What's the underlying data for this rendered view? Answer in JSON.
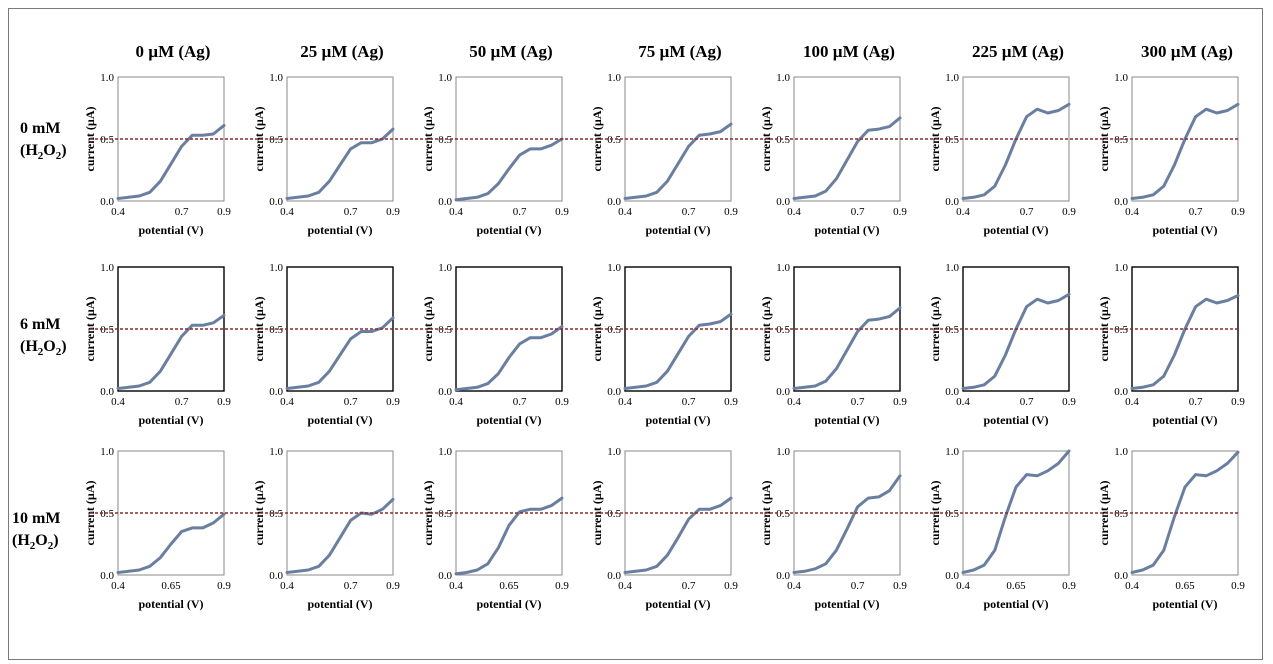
{
  "columns": [
    "0 µM (Ag)",
    "25 µM (Ag)",
    "50 µM (Ag)",
    "75 µM (Ag)",
    "100 µM (Ag)",
    "225 µM (Ag)",
    "300 µM (Ag)"
  ],
  "rows": [
    {
      "conc": "0 mM",
      "species": "H",
      "sub1": "2",
      "mid": "O",
      "sub2": "2"
    },
    {
      "conc": "6 mM",
      "species": "H",
      "sub1": "2",
      "mid": "O",
      "sub2": "2"
    },
    {
      "conc": "10 mM",
      "species": "H",
      "sub1": "2",
      "mid": "O",
      "sub2": "2"
    }
  ],
  "colors": {
    "curve": "#6a7fa0",
    "reference_line": "#8b2a2a",
    "axis": "#8a8a8a"
  },
  "chart_data": {
    "type": "line",
    "xlabel": "potential (V)",
    "ylabel": "current (µA)",
    "ylim": [
      0,
      1.0
    ],
    "yticks": [
      "0.0",
      "0.5",
      "1.0"
    ],
    "reference_y": 0.5,
    "panels": [
      {
        "row": 0,
        "col": 0,
        "xlim": [
          0.4,
          0.9
        ],
        "xticks": [
          "0.4",
          "0.7",
          "0.9"
        ],
        "x": [
          0.4,
          0.45,
          0.5,
          0.55,
          0.6,
          0.65,
          0.7,
          0.75,
          0.8,
          0.85,
          0.9
        ],
        "y": [
          0.02,
          0.03,
          0.04,
          0.07,
          0.16,
          0.3,
          0.44,
          0.53,
          0.53,
          0.54,
          0.61
        ]
      },
      {
        "row": 0,
        "col": 1,
        "xlim": [
          0.4,
          0.9
        ],
        "xticks": [
          "0.4",
          "0.7",
          "0.9"
        ],
        "x": [
          0.4,
          0.45,
          0.5,
          0.55,
          0.6,
          0.65,
          0.7,
          0.75,
          0.8,
          0.85,
          0.9
        ],
        "y": [
          0.02,
          0.03,
          0.04,
          0.07,
          0.16,
          0.29,
          0.42,
          0.47,
          0.47,
          0.5,
          0.58
        ]
      },
      {
        "row": 0,
        "col": 2,
        "xlim": [
          0.4,
          0.9
        ],
        "xticks": [
          "0.4",
          "0.7",
          "0.9"
        ],
        "x": [
          0.4,
          0.45,
          0.5,
          0.55,
          0.6,
          0.65,
          0.7,
          0.75,
          0.8,
          0.85,
          0.9
        ],
        "y": [
          0.01,
          0.02,
          0.03,
          0.06,
          0.14,
          0.26,
          0.37,
          0.42,
          0.42,
          0.45,
          0.5
        ]
      },
      {
        "row": 0,
        "col": 3,
        "xlim": [
          0.4,
          0.9
        ],
        "xticks": [
          "0.4",
          "0.7",
          "0.9"
        ],
        "x": [
          0.4,
          0.45,
          0.5,
          0.55,
          0.6,
          0.65,
          0.7,
          0.75,
          0.8,
          0.85,
          0.9
        ],
        "y": [
          0.02,
          0.03,
          0.04,
          0.07,
          0.16,
          0.3,
          0.44,
          0.53,
          0.54,
          0.56,
          0.62
        ]
      },
      {
        "row": 0,
        "col": 4,
        "xlim": [
          0.4,
          0.9
        ],
        "xticks": [
          "0.4",
          "0.7",
          "0.9"
        ],
        "x": [
          0.4,
          0.45,
          0.5,
          0.55,
          0.6,
          0.65,
          0.7,
          0.75,
          0.8,
          0.85,
          0.9
        ],
        "y": [
          0.02,
          0.03,
          0.04,
          0.08,
          0.18,
          0.33,
          0.48,
          0.57,
          0.58,
          0.6,
          0.67
        ]
      },
      {
        "row": 0,
        "col": 5,
        "xlim": [
          0.4,
          0.9
        ],
        "xticks": [
          "0.4",
          "0.7",
          "0.9"
        ],
        "x": [
          0.4,
          0.45,
          0.5,
          0.55,
          0.6,
          0.65,
          0.7,
          0.75,
          0.8,
          0.85,
          0.9
        ],
        "y": [
          0.02,
          0.03,
          0.05,
          0.12,
          0.29,
          0.5,
          0.68,
          0.74,
          0.71,
          0.73,
          0.78
        ]
      },
      {
        "row": 0,
        "col": 6,
        "xlim": [
          0.4,
          0.9
        ],
        "xticks": [
          "0.4",
          "0.7",
          "0.9"
        ],
        "x": [
          0.4,
          0.45,
          0.5,
          0.55,
          0.6,
          0.65,
          0.7,
          0.75,
          0.8,
          0.85,
          0.9
        ],
        "y": [
          0.02,
          0.03,
          0.05,
          0.12,
          0.29,
          0.5,
          0.68,
          0.74,
          0.71,
          0.73,
          0.78
        ]
      },
      {
        "row": 1,
        "col": 0,
        "xlim": [
          0.4,
          0.9
        ],
        "xticks": [
          "0.4",
          "0.7",
          "0.9"
        ],
        "x": [
          0.4,
          0.45,
          0.5,
          0.55,
          0.6,
          0.65,
          0.7,
          0.75,
          0.8,
          0.85,
          0.9
        ],
        "y": [
          0.02,
          0.03,
          0.04,
          0.07,
          0.16,
          0.3,
          0.44,
          0.53,
          0.53,
          0.55,
          0.61
        ]
      },
      {
        "row": 1,
        "col": 1,
        "xlim": [
          0.4,
          0.9
        ],
        "xticks": [
          "0.4",
          "0.7",
          "0.9"
        ],
        "x": [
          0.4,
          0.45,
          0.5,
          0.55,
          0.6,
          0.65,
          0.7,
          0.75,
          0.8,
          0.85,
          0.9
        ],
        "y": [
          0.02,
          0.03,
          0.04,
          0.07,
          0.16,
          0.29,
          0.42,
          0.48,
          0.48,
          0.51,
          0.59
        ]
      },
      {
        "row": 1,
        "col": 2,
        "xlim": [
          0.4,
          0.9
        ],
        "xticks": [
          "0.4",
          "0.7",
          "0.9"
        ],
        "x": [
          0.4,
          0.45,
          0.5,
          0.55,
          0.6,
          0.65,
          0.7,
          0.75,
          0.8,
          0.85,
          0.9
        ],
        "y": [
          0.01,
          0.02,
          0.03,
          0.06,
          0.14,
          0.27,
          0.38,
          0.43,
          0.43,
          0.46,
          0.52
        ]
      },
      {
        "row": 1,
        "col": 3,
        "xlim": [
          0.4,
          0.9
        ],
        "xticks": [
          "0.4",
          "0.7",
          "0.9"
        ],
        "x": [
          0.4,
          0.45,
          0.5,
          0.55,
          0.6,
          0.65,
          0.7,
          0.75,
          0.8,
          0.85,
          0.9
        ],
        "y": [
          0.02,
          0.03,
          0.04,
          0.07,
          0.16,
          0.3,
          0.44,
          0.53,
          0.54,
          0.56,
          0.62
        ]
      },
      {
        "row": 1,
        "col": 4,
        "xlim": [
          0.4,
          0.9
        ],
        "xticks": [
          "0.4",
          "0.7",
          "0.9"
        ],
        "x": [
          0.4,
          0.45,
          0.5,
          0.55,
          0.6,
          0.65,
          0.7,
          0.75,
          0.8,
          0.85,
          0.9
        ],
        "y": [
          0.02,
          0.03,
          0.04,
          0.08,
          0.18,
          0.33,
          0.48,
          0.57,
          0.58,
          0.6,
          0.67
        ]
      },
      {
        "row": 1,
        "col": 5,
        "xlim": [
          0.4,
          0.9
        ],
        "xticks": [
          "0.4",
          "0.7",
          "0.9"
        ],
        "x": [
          0.4,
          0.45,
          0.5,
          0.55,
          0.6,
          0.65,
          0.7,
          0.75,
          0.8,
          0.85,
          0.9
        ],
        "y": [
          0.02,
          0.03,
          0.05,
          0.12,
          0.29,
          0.5,
          0.68,
          0.74,
          0.71,
          0.73,
          0.78
        ]
      },
      {
        "row": 1,
        "col": 6,
        "xlim": [
          0.4,
          0.9
        ],
        "xticks": [
          "0.4",
          "0.7",
          "0.9"
        ],
        "x": [
          0.4,
          0.45,
          0.5,
          0.55,
          0.6,
          0.65,
          0.7,
          0.75,
          0.8,
          0.85,
          0.9
        ],
        "y": [
          0.02,
          0.03,
          0.05,
          0.12,
          0.29,
          0.5,
          0.68,
          0.74,
          0.71,
          0.73,
          0.77
        ]
      },
      {
        "row": 2,
        "col": 0,
        "xlim": [
          0.4,
          0.9
        ],
        "xticks": [
          "0.4",
          "0.65",
          "0.9"
        ],
        "x": [
          0.4,
          0.45,
          0.5,
          0.55,
          0.6,
          0.65,
          0.7,
          0.75,
          0.8,
          0.85,
          0.9
        ],
        "y": [
          0.02,
          0.03,
          0.04,
          0.07,
          0.14,
          0.25,
          0.35,
          0.38,
          0.38,
          0.42,
          0.49
        ]
      },
      {
        "row": 2,
        "col": 1,
        "xlim": [
          0.4,
          0.9
        ],
        "xticks": [
          "0.4",
          "0.7",
          "0.9"
        ],
        "x": [
          0.4,
          0.45,
          0.5,
          0.55,
          0.6,
          0.65,
          0.7,
          0.75,
          0.8,
          0.85,
          0.9
        ],
        "y": [
          0.02,
          0.03,
          0.04,
          0.07,
          0.16,
          0.3,
          0.44,
          0.5,
          0.49,
          0.53,
          0.61
        ]
      },
      {
        "row": 2,
        "col": 2,
        "xlim": [
          0.4,
          0.9
        ],
        "xticks": [
          "0.4",
          "0.65",
          "0.9"
        ],
        "x": [
          0.4,
          0.45,
          0.5,
          0.55,
          0.6,
          0.65,
          0.7,
          0.75,
          0.8,
          0.85,
          0.9
        ],
        "y": [
          0.01,
          0.02,
          0.04,
          0.09,
          0.22,
          0.4,
          0.51,
          0.53,
          0.53,
          0.56,
          0.62
        ]
      },
      {
        "row": 2,
        "col": 3,
        "xlim": [
          0.4,
          0.9
        ],
        "xticks": [
          "0.4",
          "0.7",
          "0.9"
        ],
        "x": [
          0.4,
          0.45,
          0.5,
          0.55,
          0.6,
          0.65,
          0.7,
          0.75,
          0.8,
          0.85,
          0.9
        ],
        "y": [
          0.02,
          0.03,
          0.04,
          0.07,
          0.16,
          0.3,
          0.45,
          0.53,
          0.53,
          0.56,
          0.62
        ]
      },
      {
        "row": 2,
        "col": 4,
        "xlim": [
          0.4,
          0.9
        ],
        "xticks": [
          "0.4",
          "0.7",
          "0.9"
        ],
        "x": [
          0.4,
          0.45,
          0.5,
          0.55,
          0.6,
          0.65,
          0.7,
          0.75,
          0.8,
          0.85,
          0.9
        ],
        "y": [
          0.02,
          0.03,
          0.05,
          0.09,
          0.2,
          0.37,
          0.55,
          0.62,
          0.63,
          0.68,
          0.8
        ]
      },
      {
        "row": 2,
        "col": 5,
        "xlim": [
          0.4,
          0.9
        ],
        "xticks": [
          "0.4",
          "0.65",
          "0.9"
        ],
        "x": [
          0.4,
          0.45,
          0.5,
          0.55,
          0.6,
          0.65,
          0.7,
          0.75,
          0.8,
          0.85,
          0.9
        ],
        "y": [
          0.02,
          0.04,
          0.08,
          0.2,
          0.47,
          0.71,
          0.81,
          0.8,
          0.84,
          0.9,
          1.0
        ]
      },
      {
        "row": 2,
        "col": 6,
        "xlim": [
          0.4,
          0.9
        ],
        "xticks": [
          "0.4",
          "0.65",
          "0.9"
        ],
        "x": [
          0.4,
          0.45,
          0.5,
          0.55,
          0.6,
          0.65,
          0.7,
          0.75,
          0.8,
          0.85,
          0.9
        ],
        "y": [
          0.02,
          0.04,
          0.08,
          0.2,
          0.47,
          0.71,
          0.81,
          0.8,
          0.84,
          0.9,
          0.99
        ]
      }
    ]
  }
}
